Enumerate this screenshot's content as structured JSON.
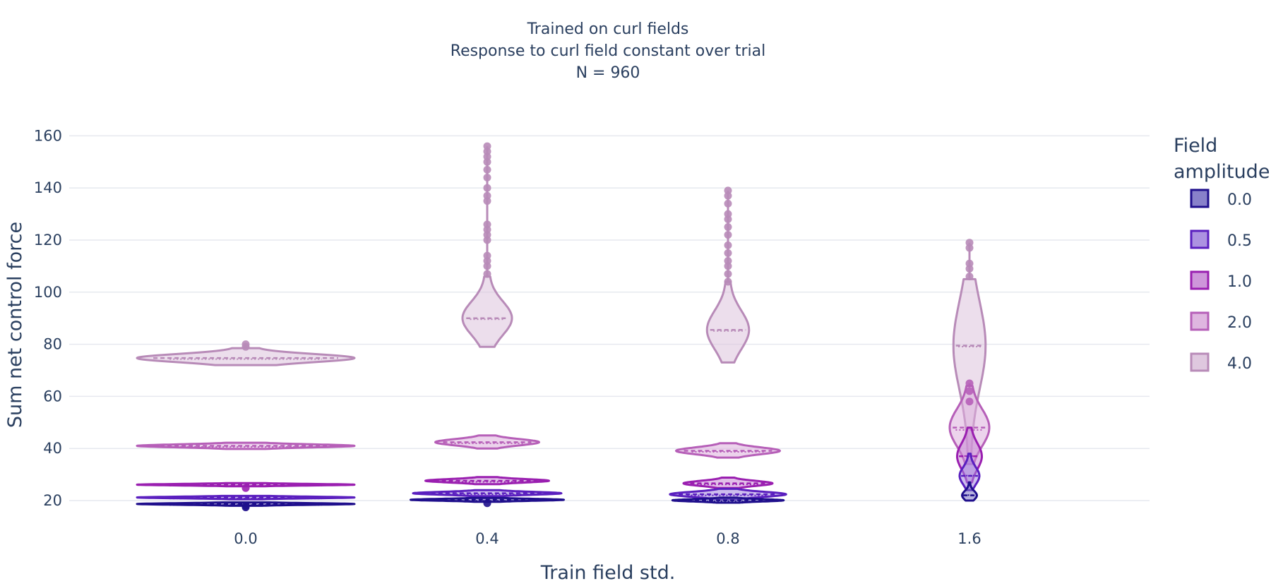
{
  "chart_data": {
    "type": "violin",
    "title_lines": [
      "Trained on curl fields",
      "Response to curl field constant over trial",
      "N = 960"
    ],
    "xlabel": "Train field std.",
    "ylabel": "Sum net control force",
    "categories": [
      "0.0",
      "0.4",
      "0.8",
      "1.6"
    ],
    "yticks": [
      20,
      40,
      60,
      80,
      100,
      120,
      140,
      160
    ],
    "ylim": [
      10,
      167
    ],
    "grid": true,
    "legend": {
      "title": "Field amplitude",
      "title_lines": [
        "Field",
        "amplitude"
      ],
      "placement": "right"
    },
    "series": [
      {
        "name": "0.0",
        "color": "#1f0f8c",
        "fill": "#7b73c4",
        "violins": [
          {
            "category": "0.0",
            "min": 18.0,
            "max": 19.3,
            "median": 18.7,
            "mean": 18.7,
            "spread": 0.88,
            "outliers": [
              17.4,
              17.9
            ]
          },
          {
            "category": "0.4",
            "min": 19.5,
            "max": 21.0,
            "median": 20.3,
            "mean": 20.3,
            "spread": 0.62,
            "outliers": [
              19.0
            ]
          },
          {
            "category": "0.8",
            "min": 19.2,
            "max": 21.1,
            "median": 20.1,
            "mean": 20.1,
            "spread": 0.45,
            "outliers": []
          },
          {
            "category": "1.6",
            "min": 20.0,
            "max": 27.0,
            "median": 22.0,
            "mean": 22.5,
            "spread": 0.06,
            "outliers": []
          }
        ]
      },
      {
        "name": "0.5",
        "color": "#5a1fbf",
        "fill": "#a386de",
        "violins": [
          {
            "category": "0.0",
            "min": 20.5,
            "max": 21.8,
            "median": 21.2,
            "mean": 21.2,
            "spread": 0.88,
            "outliers": []
          },
          {
            "category": "0.4",
            "min": 21.7,
            "max": 24.0,
            "median": 22.8,
            "mean": 22.8,
            "spread": 0.6,
            "outliers": []
          },
          {
            "category": "0.8",
            "min": 20.5,
            "max": 24.5,
            "median": 22.4,
            "mean": 22.4,
            "spread": 0.47,
            "outliers": []
          },
          {
            "category": "1.6",
            "min": 24.0,
            "max": 38.0,
            "median": 29.5,
            "mean": 30.0,
            "spread": 0.08,
            "outliers": []
          }
        ]
      },
      {
        "name": "1.0",
        "color": "#9a1fb0",
        "fill": "#c98bd6",
        "violins": [
          {
            "category": "0.0",
            "min": 25.5,
            "max": 26.7,
            "median": 26.1,
            "mean": 26.1,
            "spread": 0.88,
            "outliers": [
              24.8
            ]
          },
          {
            "category": "0.4",
            "min": 26.3,
            "max": 29.0,
            "median": 27.6,
            "mean": 27.6,
            "spread": 0.5,
            "outliers": []
          },
          {
            "category": "0.8",
            "min": 24.8,
            "max": 28.8,
            "median": 26.6,
            "mean": 26.6,
            "spread": 0.36,
            "outliers": []
          },
          {
            "category": "1.6",
            "min": 27.0,
            "max": 48.0,
            "median": 37.0,
            "mean": 37.5,
            "spread": 0.1,
            "outliers": []
          }
        ]
      },
      {
        "name": "2.0",
        "color": "#b65fb8",
        "fill": "#dcaedd",
        "violins": [
          {
            "category": "0.0",
            "min": 39.8,
            "max": 42.2,
            "median": 41.0,
            "mean": 41.0,
            "spread": 0.88,
            "outliers": []
          },
          {
            "category": "0.4",
            "min": 40.0,
            "max": 45.0,
            "median": 42.4,
            "mean": 42.4,
            "spread": 0.42,
            "outliers": []
          },
          {
            "category": "0.8",
            "min": 36.5,
            "max": 42.0,
            "median": 39.1,
            "mean": 39.1,
            "spread": 0.42,
            "outliers": []
          },
          {
            "category": "1.6",
            "min": 34.0,
            "max": 64.0,
            "median": 48.0,
            "mean": 47.5,
            "spread": 0.16,
            "outliers": [
              58.0,
              62.0,
              65.0
            ]
          }
        ]
      },
      {
        "name": "4.0",
        "color": "#b88bb8",
        "fill": "#dcc2dc",
        "violins": [
          {
            "category": "0.0",
            "min": 72.0,
            "max": 78.5,
            "median": 74.7,
            "mean": 74.7,
            "spread": 0.88,
            "outliers": [
              79.0,
              80.0
            ]
          },
          {
            "category": "0.4",
            "min": 79.0,
            "max": 106.0,
            "median": 90.0,
            "mean": 90.0,
            "spread": 0.2,
            "outliers": [
              107,
              110,
              112,
              114,
              120,
              122,
              124,
              126,
              135,
              137,
              140,
              144,
              147,
              150,
              152,
              154,
              156
            ]
          },
          {
            "category": "0.8",
            "min": 73.0,
            "max": 104.0,
            "median": 85.5,
            "mean": 85.5,
            "spread": 0.17,
            "outliers": [
              104,
              107,
              110,
              112,
              115,
              118,
              122,
              125,
              128,
              130,
              134,
              137,
              139
            ]
          },
          {
            "category": "1.6",
            "min": 35.0,
            "max": 105.0,
            "median": 79.5,
            "mean": 79.5,
            "spread": 0.13,
            "outliers": [
              106,
              109,
              111,
              117,
              119
            ]
          }
        ]
      }
    ]
  }
}
